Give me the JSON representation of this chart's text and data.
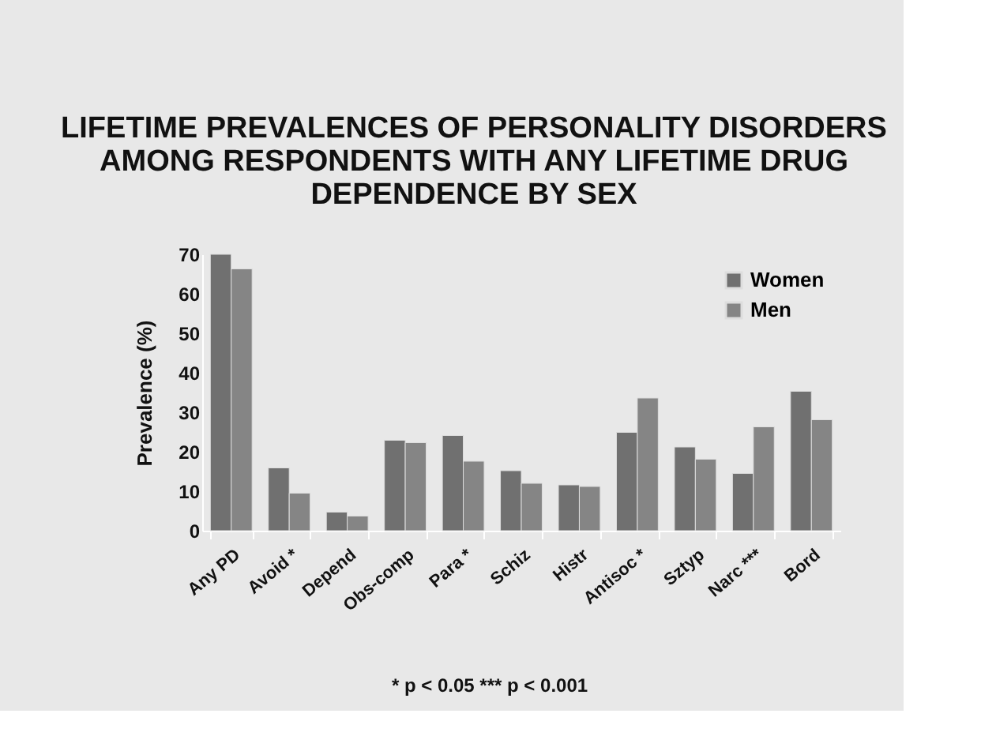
{
  "chart_data": {
    "type": "bar",
    "title": "LIFETIME PREVALENCES OF PERSONALITY DISORDERS AMONG RESPONDENTS WITH ANY LIFETIME DRUG DEPENDENCE BY SEX",
    "ylabel": "Prevalence (%)",
    "categories": [
      "Any PD",
      "Avoid *",
      "Depend",
      "Obs-comp",
      "Para *",
      "Schiz",
      "Histr",
      "Antisoc *",
      "Sztyp",
      "Narc ***",
      "Bord"
    ],
    "series": [
      {
        "name": "Women",
        "color": "#707070",
        "values": [
          70,
          15.9,
          4.7,
          22.9,
          24.1,
          15.2,
          11.6,
          24.9,
          21.2,
          14.5,
          35.3
        ]
      },
      {
        "name": "Men",
        "color": "#858585",
        "values": [
          66.3,
          9.5,
          3.7,
          22.3,
          17.6,
          12.0,
          11.2,
          33.6,
          18.1,
          26.3,
          28.1
        ]
      }
    ],
    "ylim": [
      0,
      70
    ],
    "yticks": [
      0,
      10,
      20,
      30,
      40,
      50,
      60,
      70
    ],
    "grid": false,
    "legend": "top right",
    "annotations": [
      "* p < 0.05          *** p < 0.001"
    ]
  }
}
